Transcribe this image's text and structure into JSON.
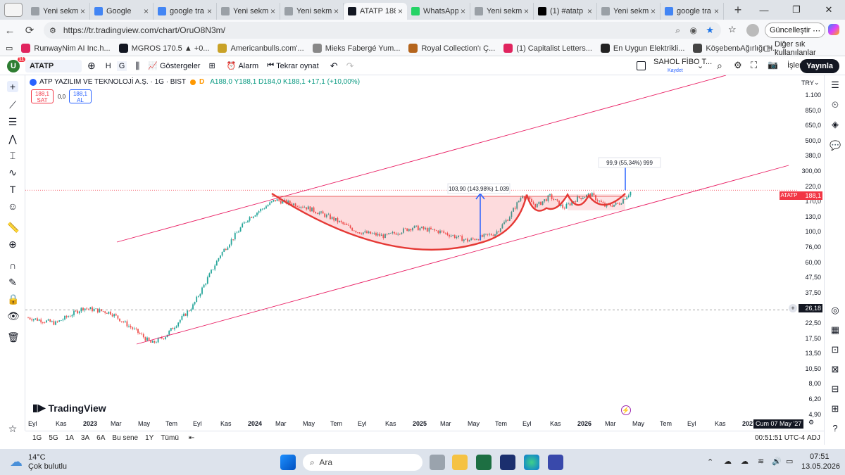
{
  "browser": {
    "tabs": [
      {
        "label": "Yeni sekme",
        "color": "#9aa0a6"
      },
      {
        "label": "Google",
        "color": "#4285f4"
      },
      {
        "label": "google tra",
        "color": "#4285f4"
      },
      {
        "label": "Yeni sekme",
        "color": "#9aa0a6"
      },
      {
        "label": "Yeni sekme",
        "color": "#9aa0a6"
      },
      {
        "label": "ATATP 188",
        "color": "#131722",
        "active": true
      },
      {
        "label": "WhatsApp",
        "color": "#25d366"
      },
      {
        "label": "Yeni sekme",
        "color": "#9aa0a6"
      },
      {
        "label": "(1) #atatp",
        "color": "#000000"
      },
      {
        "label": "Yeni sekme",
        "color": "#9aa0a6"
      },
      {
        "label": "google tra",
        "color": "#4285f4"
      }
    ],
    "url": "https://tr.tradingview.com/chart/OruO8N3m/",
    "update_label": "Güncelleştir",
    "bookmarks": [
      {
        "label": "RunwayNim AI Inc.h...",
        "color": "#e0245e"
      },
      {
        "label": "MGROS 170.5 ▲ +0...",
        "color": "#131722"
      },
      {
        "label": "Americanbulls.com'...",
        "color": "#c9a227"
      },
      {
        "label": "Mieks Fabergé Yum...",
        "color": "#888888"
      },
      {
        "label": "Royal Collection'ı Ç...",
        "color": "#b5651d"
      },
      {
        "label": "(1) Capitalist Letters...",
        "color": "#e0245e"
      },
      {
        "label": "En Uygun Elektrikli...",
        "color": "#222222"
      },
      {
        "label": "Köşebent Ağırlığı H...",
        "color": "#444444"
      }
    ],
    "other_bookmarks": "Diğer sık kullanılanlar"
  },
  "tv": {
    "avatar_letter": "U",
    "notif": "11",
    "symbol": "ATATP",
    "interval": "G",
    "h_label": "H",
    "indicators": "Göstergeler",
    "alarm": "Alarm",
    "replay": "Tekrar oynat",
    "layout_name": "SAHOL FİBO T...",
    "save": "Kaydet",
    "trade": "İşlem",
    "publish": "Yayınla",
    "legend_title": "ATP YAZILIM VE TEKNOLOJİ A.Ş. · 1G · BIST",
    "legend_ohlc": "A188,0 Y188,1 D184,0 K188,1 +17,1 (+10,00%)",
    "sell_price": "188,1",
    "sell_label": "SAT",
    "spread": "0,0",
    "buy_price": "188,1",
    "buy_label": "AL",
    "logo": "TradingView",
    "scale_label": "TRY",
    "price_ticks": [
      "1.100",
      "850,0",
      "650,0",
      "500,0",
      "380,0",
      "300,00",
      "220,0",
      "170,0",
      "130,0",
      "100,0",
      "76,00",
      "60,00",
      "47,50",
      "37,50",
      "29,50",
      "22,50",
      "17,50",
      "13,50",
      "10,50",
      "8,00",
      "6,20",
      "4,90"
    ],
    "last_price_tag": "188,1",
    "cursor_price_tag": "26,18",
    "symbol_tag": "ATATP",
    "time_ticks": [
      "Eyl",
      "Kas",
      "2023",
      "Mar",
      "May",
      "Tem",
      "Eyl",
      "Kas",
      "2024",
      "Mar",
      "May",
      "Tem",
      "Eyl",
      "Kas",
      "2025",
      "Mar",
      "May",
      "Tem",
      "Eyl",
      "Kas",
      "2026",
      "Mar",
      "May",
      "Tem",
      "Eyl",
      "Kas",
      "2027"
    ],
    "cursor_date": "Cum 07 May '27",
    "ranges": [
      "1G",
      "5G",
      "1A",
      "3A",
      "6A",
      "Bu sene",
      "1Y",
      "Tümü"
    ],
    "clock": "00:51:51 UTC-4",
    "adj": "ADJ",
    "measure1": "103,90 (143,98%) 1.039",
    "measure2": "99,9 (55,34%) 999",
    "colors": {
      "up": "#26a69a",
      "down": "#ef5350",
      "channel": "#e91e63",
      "cup": "#e53935",
      "measure": "#2962ff"
    }
  },
  "chart_data": {
    "type": "line",
    "title": "ATP YAZILIM VE TEKNOLOJİ A.Ş. · 1G · BIST",
    "scale": "log",
    "ylim": [
      4.5,
      1250
    ],
    "x": [
      "2022-09",
      "2022-11",
      "2023-01",
      "2023-03",
      "2023-05",
      "2023-06",
      "2023-07",
      "2023-09",
      "2023-11",
      "2024-01",
      "2024-03",
      "2024-05",
      "2024-07",
      "2024-09",
      "2024-11",
      "2025-01",
      "2025-03",
      "2025-05",
      "2025-07",
      "2025-08",
      "2025-09",
      "2025-10",
      "2025-11",
      "2025-12",
      "2026-01",
      "2026-02",
      "2026-03",
      "2026-04",
      "2026-05"
    ],
    "series": [
      {
        "values": [
          23,
          21,
          27,
          25,
          18,
          15,
          17,
          28,
          65,
          118,
          160,
          145,
          120,
          95,
          88,
          102,
          95,
          82,
          92,
          120,
          175,
          145,
          170,
          140,
          165,
          175,
          145,
          150,
          188.1
        ]
      }
    ]
  },
  "taskbar": {
    "weather_temp": "14°C",
    "weather_desc": "Çok bulutlu",
    "search": "Ara",
    "time": "07:51",
    "date": "13.05.2026"
  }
}
